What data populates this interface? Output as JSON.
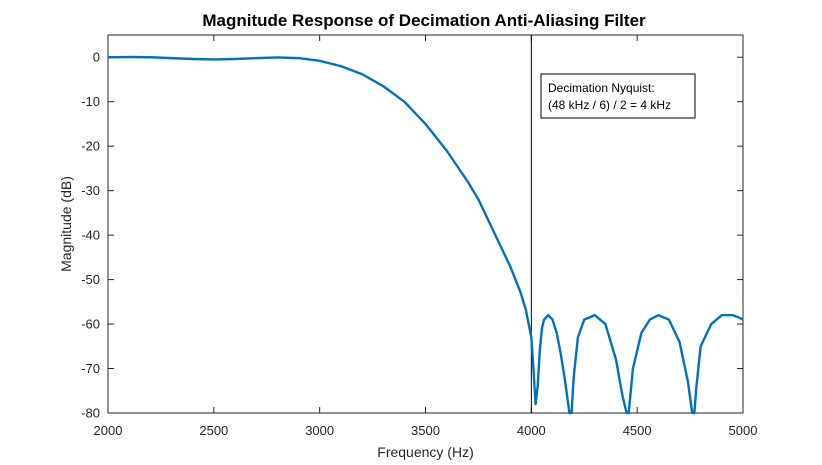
{
  "chart_data": {
    "type": "line",
    "title": "Magnitude Response of Decimation Anti-Aliasing Filter",
    "xlabel": "Frequency (Hz)",
    "ylabel": "Magnitude (dB)",
    "xlim": [
      2000,
      5000
    ],
    "ylim": [
      -80,
      5
    ],
    "xticks": [
      2000,
      2500,
      3000,
      3500,
      4000,
      4500,
      5000
    ],
    "yticks": [
      0,
      -10,
      -20,
      -30,
      -40,
      -50,
      -60,
      -70,
      -80
    ],
    "grid": false,
    "series": [
      {
        "name": "",
        "color": "#0072BD",
        "x": [
          2000,
          2100,
          2200,
          2300,
          2400,
          2500,
          2600,
          2700,
          2800,
          2900,
          3000,
          3100,
          3200,
          3300,
          3400,
          3500,
          3600,
          3700,
          3750,
          3800,
          3850,
          3900,
          3950,
          3975,
          4000,
          4010,
          4020,
          4030,
          4040,
          4050,
          4060,
          4080,
          4100,
          4120,
          4140,
          4160,
          4180,
          4190,
          4200,
          4220,
          4250,
          4300,
          4350,
          4400,
          4430,
          4450,
          4460,
          4480,
          4520,
          4560,
          4600,
          4650,
          4700,
          4740,
          4760,
          4770,
          4780,
          4800,
          4850,
          4900,
          4950,
          4980,
          5000
        ],
        "y": [
          0,
          0.05,
          0,
          -0.2,
          -0.4,
          -0.5,
          -0.4,
          -0.2,
          -0.05,
          -0.2,
          -0.8,
          -2,
          -3.8,
          -6.5,
          -10,
          -15,
          -21,
          -28,
          -32,
          -37,
          -42,
          -47,
          -53,
          -57,
          -63,
          -70,
          -78,
          -74,
          -66,
          -61,
          -59,
          -58,
          -59,
          -62,
          -67,
          -73,
          -80,
          -80,
          -72,
          -63,
          -59,
          -58,
          -60,
          -68,
          -76,
          -80,
          -80,
          -70,
          -62,
          -59,
          -58,
          -59,
          -64,
          -73,
          -80,
          -80,
          -74,
          -65,
          -60,
          -58,
          -58,
          -58.5,
          -59
        ]
      }
    ],
    "reference_line": {
      "x": 4000,
      "color": "#000000"
    },
    "annotation": {
      "lines": [
        "Decimation Nyquist:",
        "(48 kHz / 6) / 2 = 4 kHz"
      ]
    }
  }
}
